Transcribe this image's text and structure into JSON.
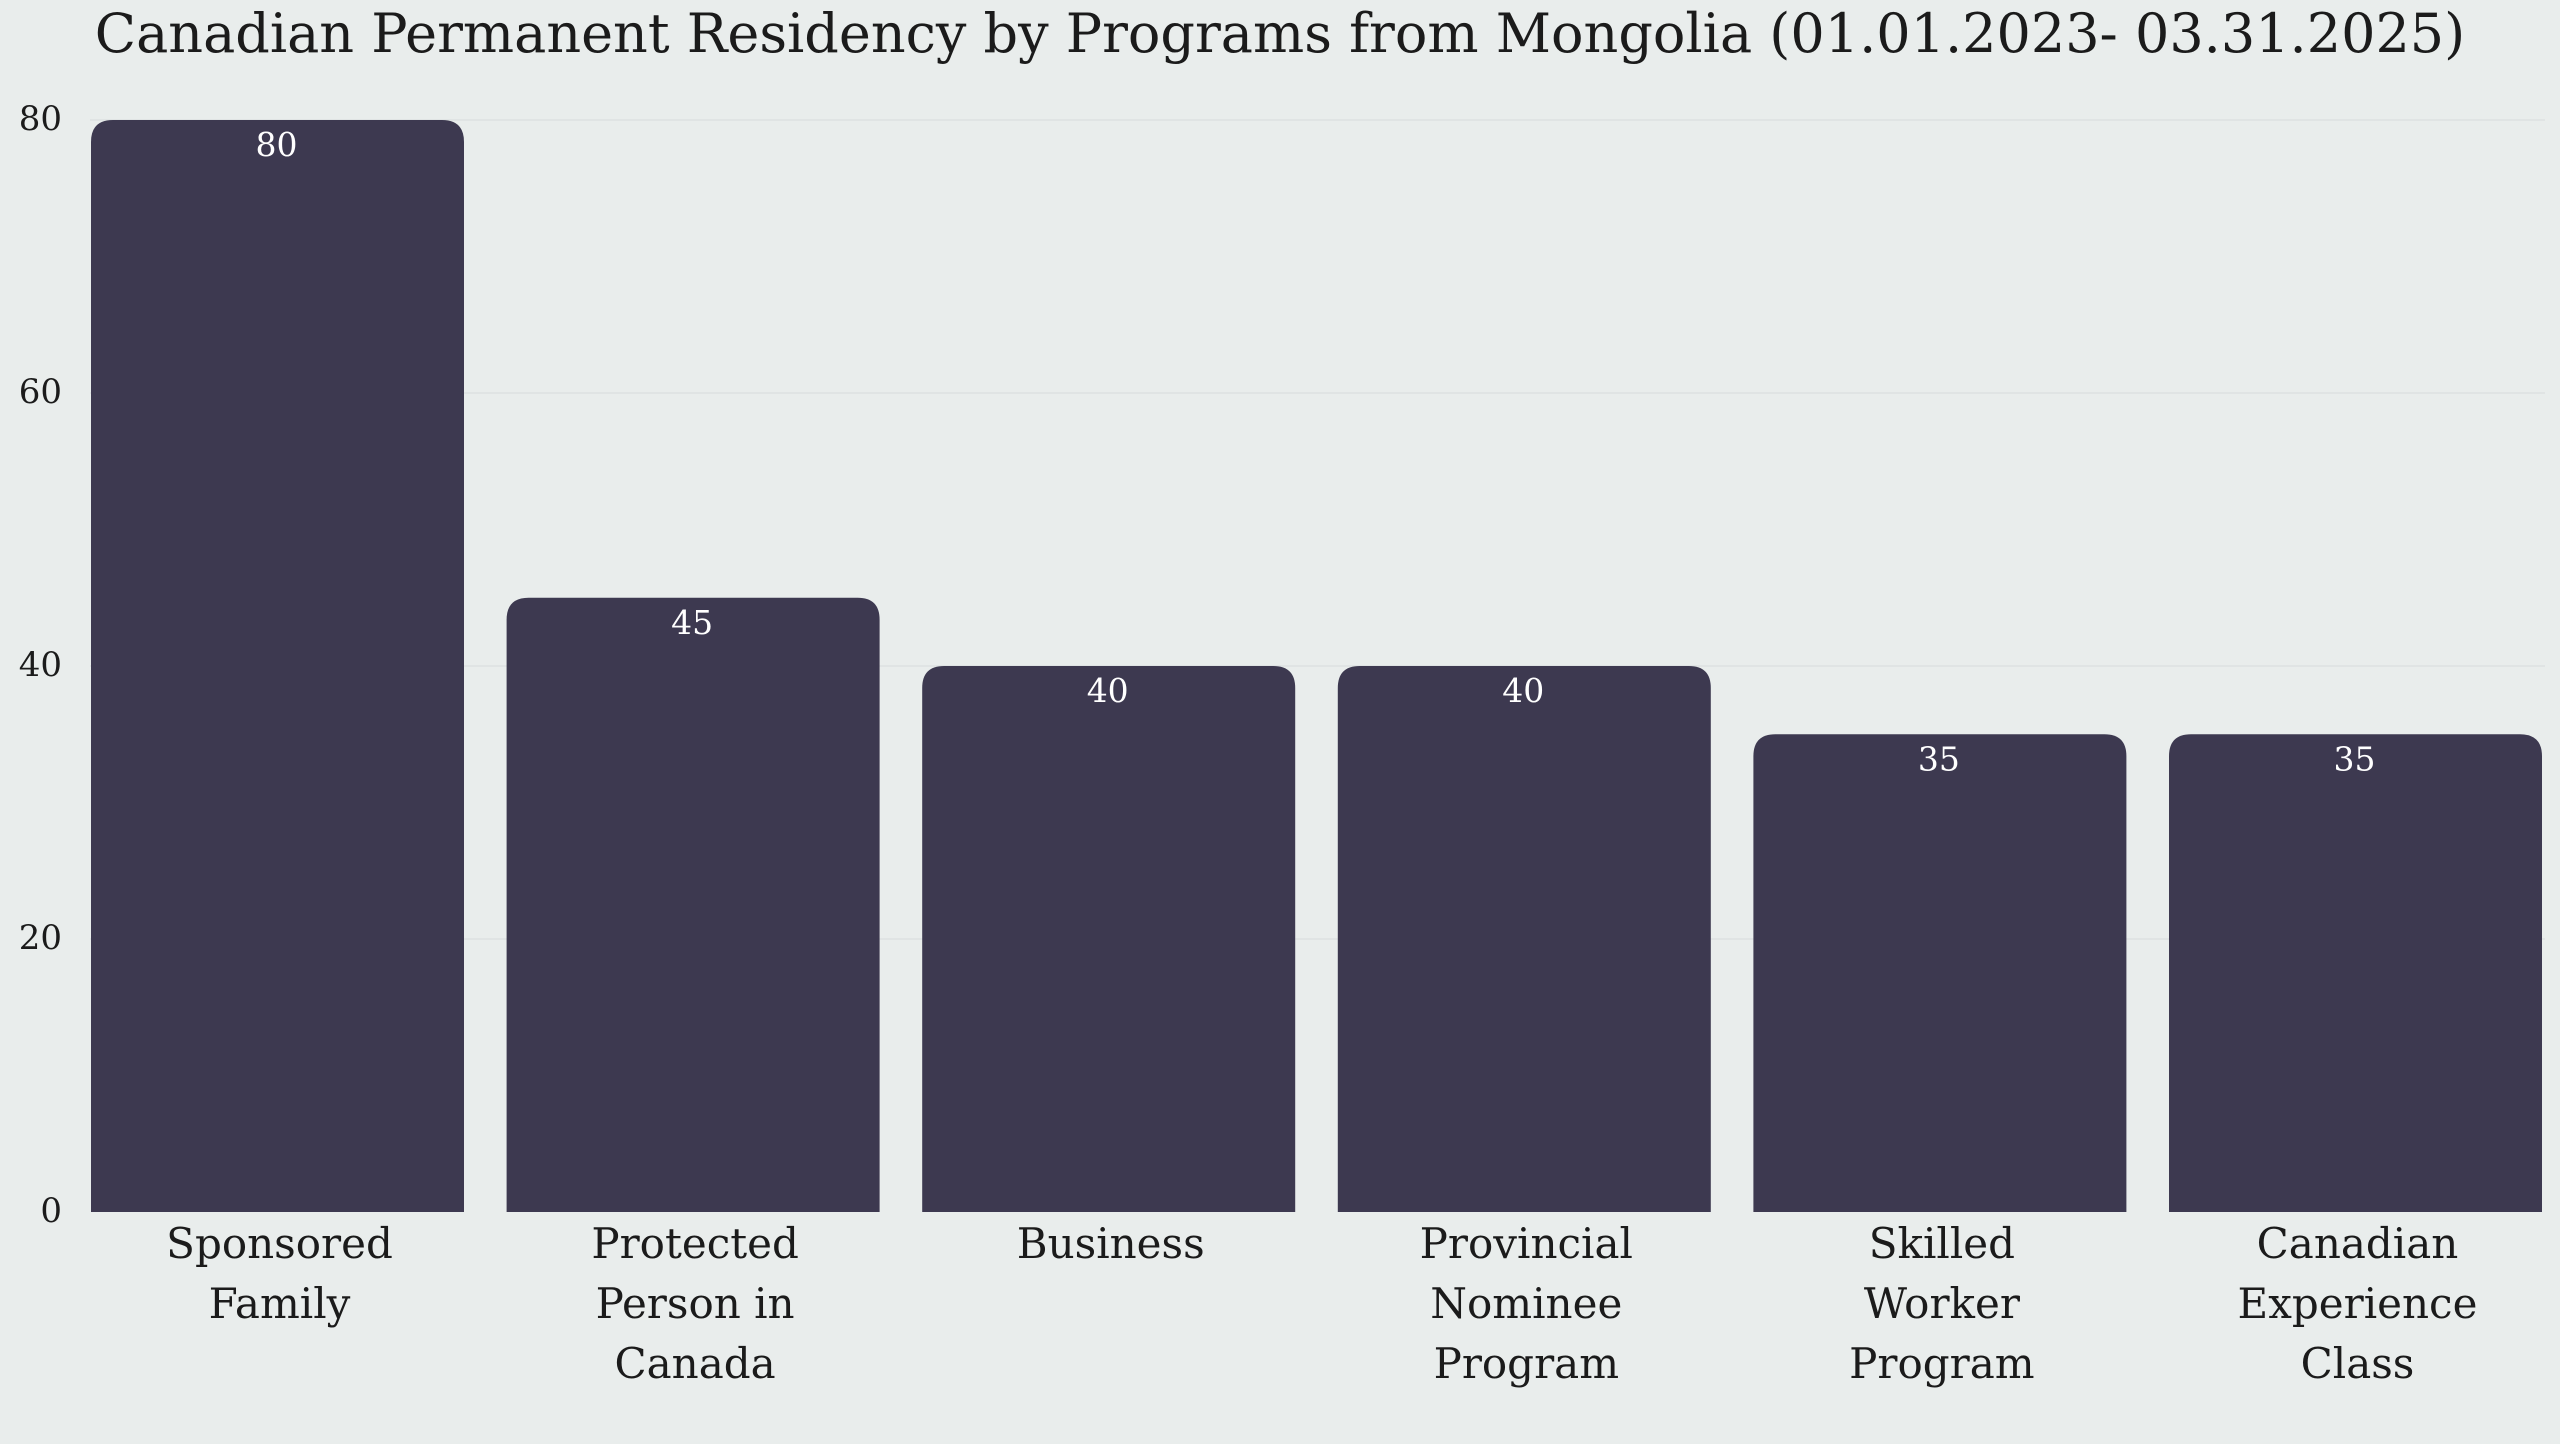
{
  "chart_data": {
    "type": "bar",
    "title": "Canadian Permanent Residency by Programs from Mongolia (01.01.2023- 03.31.2025)",
    "xlabel": "",
    "ylabel": "",
    "ylim": [
      0,
      80
    ],
    "yticks": [
      0,
      20,
      40,
      60,
      80
    ],
    "grid": true,
    "categories": [
      [
        "Sponsored",
        "Family"
      ],
      [
        "Protected",
        "Person in",
        "Canada"
      ],
      [
        "Business"
      ],
      [
        "Provincial",
        "Nominee",
        "Program"
      ],
      [
        "Skilled",
        "Worker",
        "Program"
      ],
      [
        "Canadian",
        "Experience",
        "Class"
      ]
    ],
    "values": [
      80,
      45,
      40,
      40,
      35,
      35
    ]
  },
  "colors": {
    "background": "#e9edec",
    "bar": "#3d3950",
    "grid": "#dde2e1",
    "text": "#1b1b1b",
    "data_label": "#ffffff"
  }
}
